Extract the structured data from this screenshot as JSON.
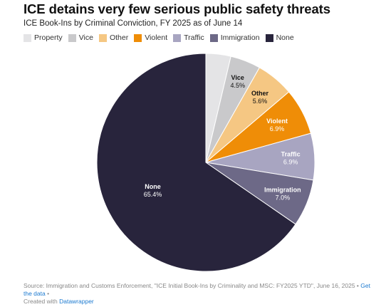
{
  "title": "ICE detains very few serious public safety threats",
  "subtitle": "ICE Book-Ins by Criminal Conviction, FY 2025 as of June 14",
  "chart_data": {
    "type": "pie",
    "categories": [
      "Property",
      "Vice",
      "Other",
      "Violent",
      "Traffic",
      "Immigration",
      "None"
    ],
    "values": [
      3.7,
      4.5,
      5.6,
      6.9,
      6.9,
      7.0,
      65.4
    ],
    "labels": [
      "",
      "4.5%",
      "5.6%",
      "6.9%",
      "6.9%",
      "7.0%",
      "65.4%"
    ],
    "label_names": [
      "",
      "Vice",
      "Other",
      "Violent",
      "Traffic",
      "Immigration",
      "None"
    ],
    "colors": [
      "#e4e4e6",
      "#c9c9cb",
      "#f5c783",
      "#ef8d07",
      "#a8a5c1",
      "#6d6987",
      "#28243c"
    ],
    "label_colors": [
      "#111111",
      "#111111",
      "#111111",
      "#ffffff",
      "#ffffff",
      "#ffffff",
      "#ffffff"
    ],
    "legend_placement": "top-left"
  },
  "footer": {
    "source": "Source: Immigration and Customs Enforcement, \"ICE Initial Book-Ins by Criminality and MSC: FY2025 YTD\", June 16, 2025 •",
    "get_data": "Get the data",
    "sep": "•",
    "created": "Created with",
    "tool": "Datawrapper"
  }
}
